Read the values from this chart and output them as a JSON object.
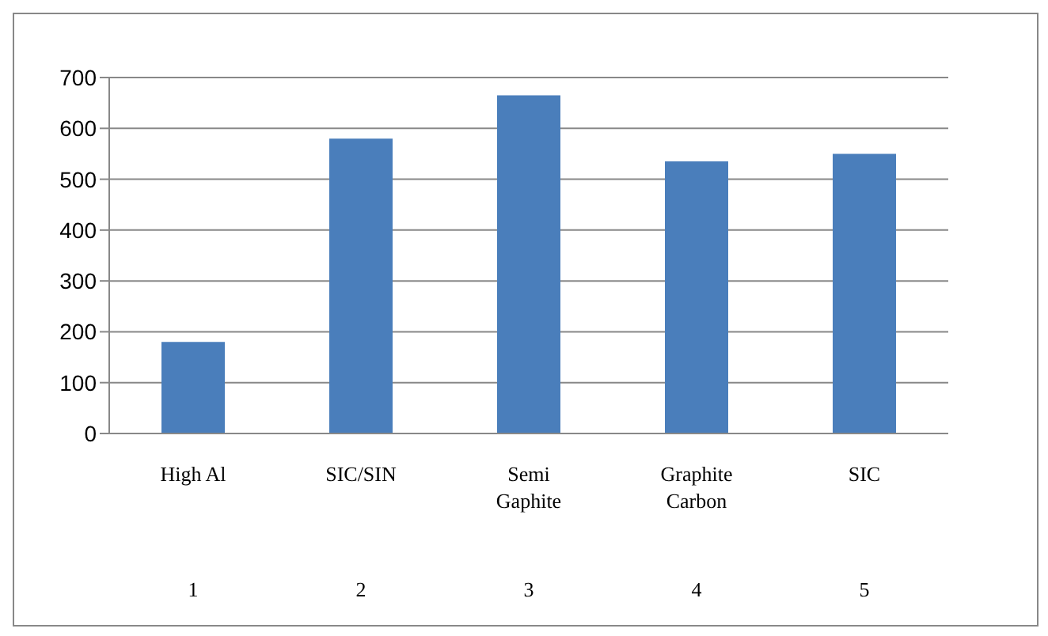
{
  "chart_data": {
    "type": "bar",
    "categories": [
      "High Al\n1",
      "SIC/SIN\n2",
      "Semi\nGaphite\n3",
      "Graphite\nCarbon\n4",
      "SIC\n5"
    ],
    "values": [
      180,
      580,
      665,
      535,
      550
    ],
    "color": "#4a7ebb",
    "ylim": [
      0,
      700
    ],
    "yticks": [
      0,
      100,
      200,
      300,
      400,
      500,
      600,
      700
    ],
    "grid": "y"
  }
}
